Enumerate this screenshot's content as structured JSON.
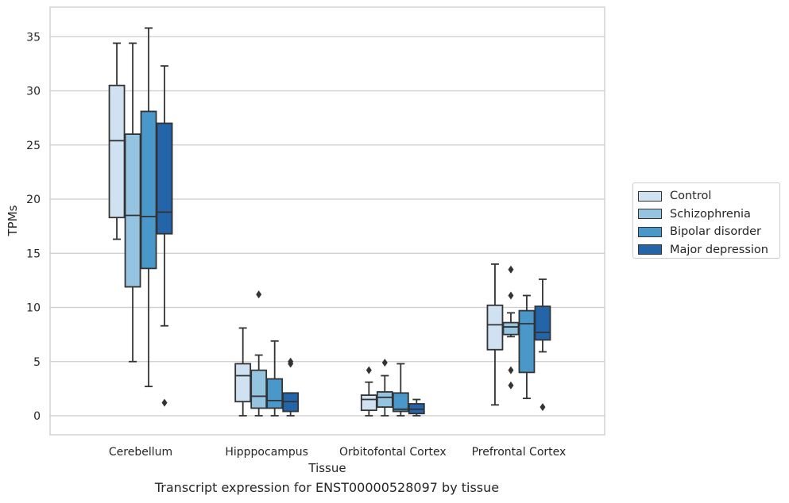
{
  "chart_data": {
    "type": "boxplot",
    "caption": "Transcript expression for ENST00000528097 by tissue",
    "xlabel": "Tissue",
    "ylabel": "TPMs",
    "ylim": [
      -1.7,
      37.5
    ],
    "yticks": [
      0,
      5,
      10,
      15,
      20,
      25,
      30,
      35
    ],
    "grid": true,
    "legend_position": "right",
    "categories": [
      "Cerebellum",
      "Hipppocampus",
      "Orbitofontal Cortex",
      "Prefrontal Cortex"
    ],
    "series": [
      {
        "name": "Control",
        "color": "#d0e1f2",
        "boxes": [
          {
            "whislo": 16.3,
            "q1": 18.3,
            "med": 25.4,
            "q3": 30.5,
            "whishi": 34.4,
            "fliers": []
          },
          {
            "whislo": 0.0,
            "q1": 1.3,
            "med": 3.7,
            "q3": 4.8,
            "whishi": 8.1,
            "fliers": []
          },
          {
            "whislo": 0.0,
            "q1": 0.5,
            "med": 1.5,
            "q3": 1.9,
            "whishi": 3.1,
            "fliers": [
              4.2
            ]
          },
          {
            "whislo": 1.0,
            "q1": 6.1,
            "med": 8.4,
            "q3": 10.2,
            "whishi": 14.0,
            "fliers": []
          }
        ]
      },
      {
        "name": "Schizophrenia",
        "color": "#94c4df",
        "boxes": [
          {
            "whislo": 5.0,
            "q1": 11.9,
            "med": 18.5,
            "q3": 26.0,
            "whishi": 34.4,
            "fliers": []
          },
          {
            "whislo": 0.0,
            "q1": 0.7,
            "med": 1.8,
            "q3": 4.2,
            "whishi": 5.6,
            "fliers": [
              11.2
            ]
          },
          {
            "whislo": 0.0,
            "q1": 0.8,
            "med": 1.7,
            "q3": 2.2,
            "whishi": 3.7,
            "fliers": [
              4.9
            ]
          },
          {
            "whislo": 7.3,
            "q1": 7.5,
            "med": 8.2,
            "q3": 8.6,
            "whishi": 9.5,
            "fliers": [
              13.5,
              11.1,
              4.2,
              2.8
            ]
          }
        ]
      },
      {
        "name": "Bipolar disorder",
        "color": "#4a98c9",
        "boxes": [
          {
            "whislo": 2.7,
            "q1": 13.6,
            "med": 18.4,
            "q3": 28.1,
            "whishi": 35.8,
            "fliers": []
          },
          {
            "whislo": 0.0,
            "q1": 0.7,
            "med": 1.4,
            "q3": 3.4,
            "whishi": 6.9,
            "fliers": []
          },
          {
            "whislo": 0.0,
            "q1": 0.4,
            "med": 0.6,
            "q3": 2.1,
            "whishi": 4.8,
            "fliers": []
          },
          {
            "whislo": 1.6,
            "q1": 4.0,
            "med": 8.5,
            "q3": 9.7,
            "whishi": 11.1,
            "fliers": []
          }
        ]
      },
      {
        "name": "Major depression",
        "color": "#2464a8",
        "boxes": [
          {
            "whislo": 8.3,
            "q1": 16.8,
            "med": 18.8,
            "q3": 27.0,
            "whishi": 32.3,
            "fliers": [
              1.2
            ]
          },
          {
            "whislo": 0.0,
            "q1": 0.4,
            "med": 1.3,
            "q3": 2.1,
            "whishi": 2.1,
            "fliers": [
              5.0,
              4.8
            ]
          },
          {
            "whislo": 0.0,
            "q1": 0.2,
            "med": 0.6,
            "q3": 1.1,
            "whishi": 1.5,
            "fliers": []
          },
          {
            "whislo": 5.9,
            "q1": 7.0,
            "med": 7.7,
            "q3": 10.1,
            "whishi": 12.6,
            "fliers": [
              0.8
            ]
          }
        ]
      }
    ]
  }
}
